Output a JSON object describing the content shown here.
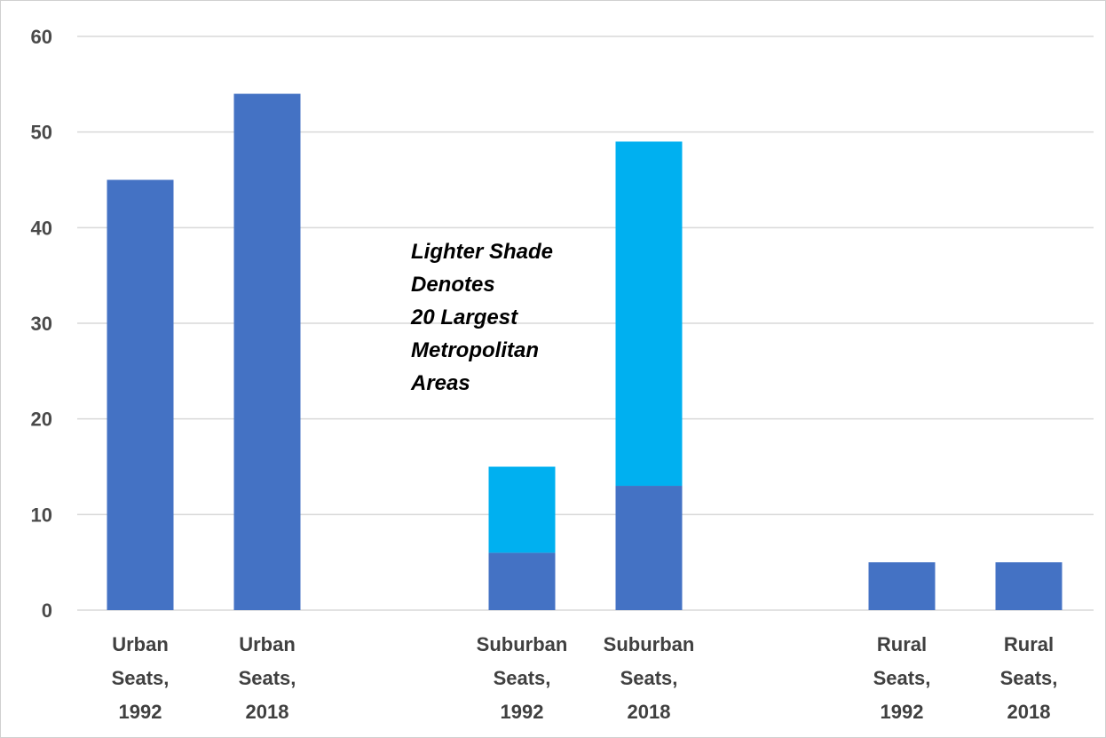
{
  "chart_data": {
    "type": "bar",
    "stacked": true,
    "categories": [
      [
        "Urban",
        "Seats,",
        "1992"
      ],
      [
        "Urban",
        "Seats,",
        "2018"
      ],
      [
        "Suburban",
        "Seats,",
        "1992"
      ],
      [
        "Suburban",
        "Seats,",
        "2018"
      ],
      [
        "Rural",
        "Seats,",
        "1992"
      ],
      [
        "Rural",
        "Seats,",
        "2018"
      ]
    ],
    "series": [
      {
        "values": [
          45,
          54,
          6,
          13,
          5,
          5
        ],
        "color": "#4472C4"
      },
      {
        "values": [
          0,
          0,
          9,
          36,
          0,
          0
        ],
        "color": "#00B0F0"
      }
    ],
    "ylim": [
      0,
      60
    ],
    "yticks": [
      0,
      10,
      20,
      30,
      40,
      50,
      60
    ],
    "grid": true,
    "grid_color": "#d9d9d9",
    "annotation": [
      "Lighter Shade",
      "Denotes",
      "20 Largest",
      "Metropolitan",
      "Areas"
    ],
    "xlabel": "",
    "ylabel": ""
  }
}
